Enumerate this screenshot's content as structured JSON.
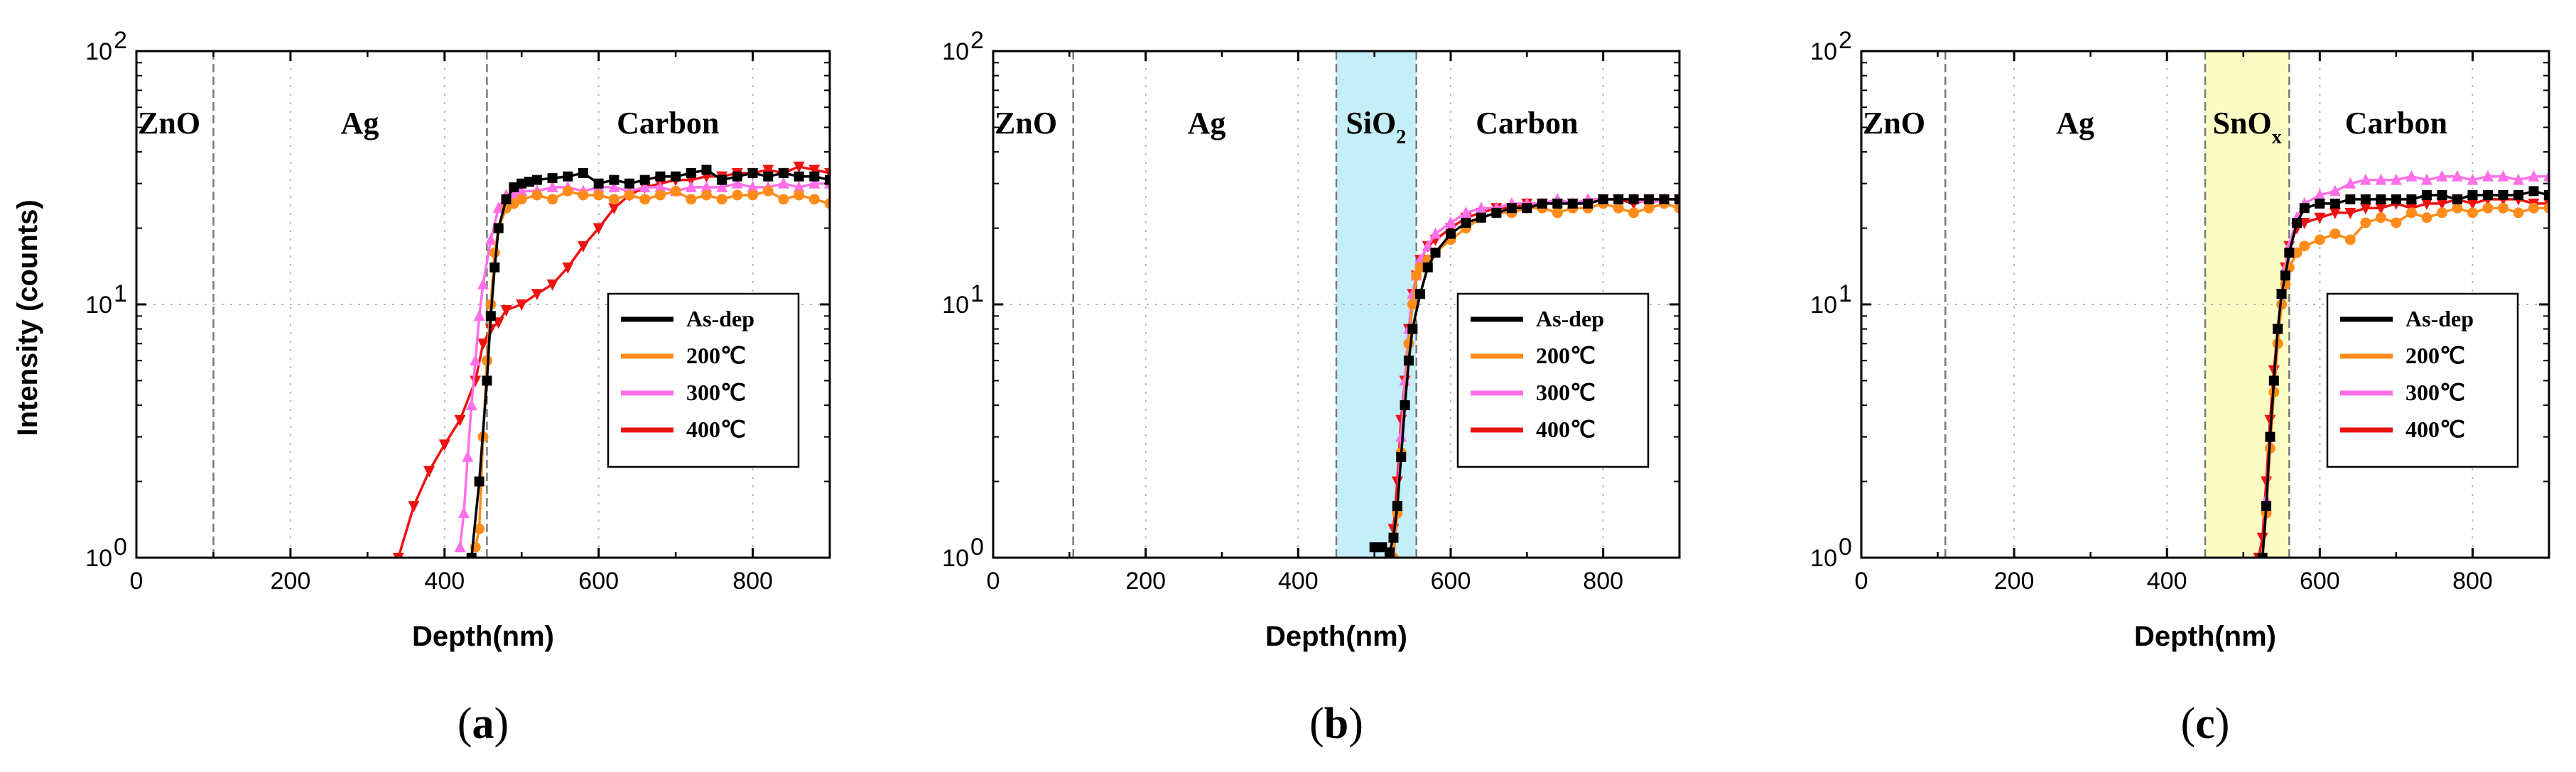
{
  "figure": {
    "shared_ylabel": "Intensity (counts)",
    "legend": [
      "As-dep",
      "200℃",
      "300℃",
      "400℃"
    ],
    "colors": {
      "As-dep": "#000000",
      "200℃": "#ff8c1a",
      "300℃": "#ff6fe8",
      "400℃": "#ee1111",
      "sio2_band": "#c4eef8",
      "snox_band": "#fbfbc4"
    },
    "markers": {
      "As-dep": "square",
      "200℃": "circle",
      "300℃": "triangle-up",
      "400℃": "triangle-down"
    }
  },
  "chart_data": [
    {
      "type": "line",
      "panel_label": "(a)",
      "caption_letter": "a",
      "xlabel": "Depth(nm)",
      "ylabel": "Intensity (counts)",
      "xlim": [
        0,
        900
      ],
      "ylim": [
        1,
        100
      ],
      "yscale": "log",
      "xticks": [
        0,
        200,
        400,
        600,
        800
      ],
      "yticks": [
        {
          "value": 1,
          "label": "10",
          "exp": "0"
        },
        {
          "value": 10,
          "label": "10",
          "exp": "1"
        },
        {
          "value": 100,
          "label": "10",
          "exp": "2"
        }
      ],
      "grid": true,
      "legend_position": "lower-right",
      "boundaries": [
        100,
        455
      ],
      "bands": [],
      "regions": [
        {
          "label": "ZnO",
          "sub": "",
          "x": 0,
          "anchor": "start"
        },
        {
          "label": "Ag",
          "sub": "",
          "x": 290,
          "anchor": "middle"
        },
        {
          "label": "Carbon",
          "sub": "",
          "x": 690,
          "anchor": "middle"
        }
      ],
      "series": [
        {
          "name": "As-dep",
          "x": [
            435,
            445,
            455,
            460,
            465,
            470,
            480,
            490,
            500,
            510,
            520,
            540,
            560,
            580,
            600,
            620,
            640,
            660,
            680,
            700,
            720,
            740,
            760,
            780,
            800,
            820,
            840,
            860,
            880,
            900
          ],
          "y": [
            1.0,
            2.0,
            5.0,
            9,
            14,
            20,
            26,
            29,
            30,
            30.5,
            31,
            31.5,
            32,
            33,
            30,
            31,
            30,
            31,
            32,
            32,
            33,
            34,
            31,
            32,
            33,
            32,
            33,
            32,
            32,
            31
          ]
        },
        {
          "name": "200℃",
          "x": [
            440,
            445,
            450,
            455,
            460,
            465,
            470,
            480,
            490,
            500,
            520,
            540,
            560,
            580,
            600,
            620,
            640,
            660,
            680,
            700,
            720,
            740,
            760,
            780,
            800,
            820,
            840,
            860,
            880,
            900
          ],
          "y": [
            1.1,
            1.3,
            3,
            6,
            10,
            16,
            20,
            24,
            25,
            26,
            27,
            26,
            28,
            27,
            27,
            26,
            27,
            26,
            27,
            28,
            26,
            27,
            26,
            27,
            27,
            28,
            26,
            27,
            26,
            25
          ]
        },
        {
          "name": "300℃",
          "x": [
            420,
            425,
            430,
            435,
            440,
            445,
            450,
            460,
            470,
            480,
            490,
            500,
            520,
            540,
            560,
            580,
            600,
            620,
            640,
            660,
            680,
            700,
            720,
            740,
            760,
            780,
            800,
            820,
            840,
            860,
            880,
            900
          ],
          "y": [
            1.1,
            1.5,
            2.5,
            4,
            6,
            9,
            12,
            18,
            24,
            27,
            27,
            28,
            28,
            29,
            29,
            28,
            29,
            29,
            28,
            29,
            29,
            28,
            29,
            29,
            29,
            30,
            29,
            29,
            30,
            29,
            30,
            30
          ]
        },
        {
          "name": "400℃",
          "x": [
            340,
            360,
            380,
            400,
            420,
            440,
            450,
            460,
            470,
            480,
            500,
            520,
            540,
            560,
            580,
            600,
            620,
            640,
            660,
            680,
            700,
            720,
            740,
            760,
            780,
            800,
            820,
            840,
            860,
            880,
            900
          ],
          "y": [
            1.0,
            1.6,
            2.2,
            2.8,
            3.5,
            5,
            7,
            8,
            8.5,
            9.5,
            10,
            11,
            12,
            14,
            17,
            20,
            24,
            27,
            29,
            30,
            31,
            31,
            32,
            32,
            33,
            33,
            34,
            33,
            35,
            34,
            33
          ]
        }
      ]
    },
    {
      "type": "line",
      "panel_label": "(b)",
      "caption_letter": "b",
      "xlabel": "Depth(nm)",
      "ylabel": "",
      "xlim": [
        0,
        900
      ],
      "ylim": [
        1,
        100
      ],
      "yscale": "log",
      "xticks": [
        0,
        200,
        400,
        600,
        800
      ],
      "yticks": [
        {
          "value": 1,
          "label": "10",
          "exp": "0"
        },
        {
          "value": 10,
          "label": "10",
          "exp": "1"
        },
        {
          "value": 100,
          "label": "10",
          "exp": "2"
        }
      ],
      "grid": true,
      "legend_position": "lower-right",
      "boundaries": [
        105,
        450,
        555
      ],
      "bands": [
        {
          "from": 450,
          "to": 555,
          "color_key": "sio2_band"
        }
      ],
      "regions": [
        {
          "label": "ZnO",
          "sub": "",
          "x": 0,
          "anchor": "start"
        },
        {
          "label": "Ag",
          "sub": "",
          "x": 280,
          "anchor": "middle"
        },
        {
          "label": "SiO",
          "sub": "2",
          "x": 502,
          "anchor": "middle"
        },
        {
          "label": "Carbon",
          "sub": "",
          "x": 700,
          "anchor": "middle"
        }
      ],
      "series": [
        {
          "name": "As-dep",
          "x": [
            500,
            510,
            520,
            525,
            530,
            535,
            540,
            545,
            550,
            560,
            570,
            580,
            600,
            620,
            640,
            660,
            680,
            700,
            720,
            740,
            760,
            780,
            800,
            820,
            840,
            860,
            880,
            900
          ],
          "y": [
            1.1,
            1.1,
            1.05,
            1.2,
            1.6,
            2.5,
            4,
            6,
            8,
            11,
            14,
            16,
            19,
            21,
            22,
            23,
            24,
            24,
            25,
            25,
            25,
            25,
            26,
            26,
            26,
            26,
            26,
            26
          ]
        },
        {
          "name": "200℃",
          "x": [
            525,
            530,
            535,
            540,
            545,
            550,
            555,
            560,
            570,
            580,
            600,
            620,
            640,
            660,
            680,
            700,
            720,
            740,
            760,
            780,
            800,
            820,
            840,
            860,
            880,
            900
          ],
          "y": [
            1.0,
            1.5,
            2.6,
            4,
            7,
            10,
            13,
            14,
            15,
            16,
            18,
            20,
            22,
            23,
            23,
            24,
            24,
            23,
            24,
            24,
            25,
            24,
            23,
            24,
            25,
            24
          ]
        },
        {
          "name": "300℃",
          "x": [
            525,
            530,
            535,
            540,
            545,
            550,
            555,
            560,
            570,
            580,
            600,
            620,
            640,
            660,
            680,
            700,
            720,
            740,
            760,
            780,
            800,
            820,
            840,
            860,
            880,
            900
          ],
          "y": [
            1.0,
            1.6,
            3,
            5,
            8,
            11,
            13,
            15,
            17,
            19,
            21,
            23,
            24,
            24,
            25,
            25,
            25,
            26,
            25,
            26,
            26,
            26,
            26,
            25,
            26,
            26
          ]
        },
        {
          "name": "400℃",
          "x": [
            520,
            525,
            530,
            535,
            540,
            545,
            550,
            555,
            560,
            570,
            580,
            600,
            620,
            640,
            660,
            680,
            700,
            720,
            740,
            760,
            780,
            800,
            820,
            840,
            860,
            880,
            900
          ],
          "y": [
            1.0,
            1.3,
            2,
            3.5,
            5,
            8,
            11,
            13,
            15,
            17,
            18,
            20,
            22,
            23,
            24,
            24,
            25,
            25,
            25,
            25,
            25,
            26,
            26,
            25,
            26,
            26,
            26
          ]
        }
      ]
    },
    {
      "type": "line",
      "panel_label": "(c)",
      "caption_letter": "c",
      "xlabel": "Depth(nm)",
      "ylabel": "",
      "xlim": [
        0,
        900
      ],
      "ylim": [
        1,
        100
      ],
      "yscale": "log",
      "xticks": [
        0,
        200,
        400,
        600,
        800
      ],
      "yticks": [
        {
          "value": 1,
          "label": "10",
          "exp": "0"
        },
        {
          "value": 10,
          "label": "10",
          "exp": "1"
        },
        {
          "value": 100,
          "label": "10",
          "exp": "2"
        }
      ],
      "grid": true,
      "legend_position": "lower-right",
      "boundaries": [
        110,
        450,
        560
      ],
      "bands": [
        {
          "from": 450,
          "to": 560,
          "color_key": "snox_band"
        }
      ],
      "regions": [
        {
          "label": "ZnO",
          "sub": "",
          "x": 0,
          "anchor": "start"
        },
        {
          "label": "Ag",
          "sub": "",
          "x": 280,
          "anchor": "middle"
        },
        {
          "label": "SnO",
          "sub": "x",
          "x": 505,
          "anchor": "middle"
        },
        {
          "label": "Carbon",
          "sub": "",
          "x": 700,
          "anchor": "middle"
        }
      ],
      "series": [
        {
          "name": "As-dep",
          "x": [
            525,
            530,
            535,
            540,
            545,
            550,
            555,
            560,
            570,
            580,
            600,
            620,
            640,
            660,
            680,
            700,
            720,
            740,
            760,
            780,
            800,
            820,
            840,
            860,
            880,
            900
          ],
          "y": [
            1.0,
            1.6,
            3,
            5,
            8,
            11,
            13,
            16,
            21,
            24,
            25,
            25,
            26,
            26,
            26,
            26,
            26,
            27,
            27,
            26,
            27,
            27,
            27,
            27,
            28,
            27
          ]
        },
        {
          "name": "200℃",
          "x": [
            525,
            530,
            535,
            540,
            545,
            550,
            555,
            560,
            570,
            580,
            600,
            620,
            640,
            660,
            680,
            700,
            720,
            740,
            760,
            780,
            800,
            820,
            840,
            860,
            880,
            900
          ],
          "y": [
            1.0,
            1.5,
            2.7,
            4.5,
            7,
            10,
            12,
            14,
            16,
            17,
            18,
            19,
            18,
            21,
            22,
            21,
            23,
            22,
            23,
            24,
            23,
            24,
            24,
            23,
            24,
            24
          ]
        },
        {
          "name": "300℃",
          "x": [
            525,
            530,
            535,
            540,
            545,
            550,
            555,
            560,
            570,
            580,
            600,
            620,
            640,
            660,
            680,
            700,
            720,
            740,
            760,
            780,
            800,
            820,
            840,
            860,
            880,
            900
          ],
          "y": [
            1.0,
            1.7,
            3,
            5,
            8,
            11,
            14,
            17,
            22,
            25,
            27,
            28,
            30,
            31,
            31,
            31,
            32,
            31,
            32,
            32,
            31,
            32,
            32,
            31,
            32,
            32
          ]
        },
        {
          "name": "400℃",
          "x": [
            520,
            525,
            530,
            535,
            540,
            545,
            550,
            555,
            560,
            570,
            580,
            600,
            620,
            640,
            660,
            680,
            700,
            720,
            740,
            760,
            780,
            800,
            820,
            840,
            860,
            880,
            900
          ],
          "y": [
            1.0,
            1.2,
            2,
            3.5,
            5.5,
            8,
            11,
            14,
            17,
            20,
            21,
            22,
            23,
            23,
            24,
            24,
            25,
            24,
            25,
            25,
            26,
            25,
            26,
            26,
            26,
            25,
            25
          ]
        }
      ]
    }
  ]
}
